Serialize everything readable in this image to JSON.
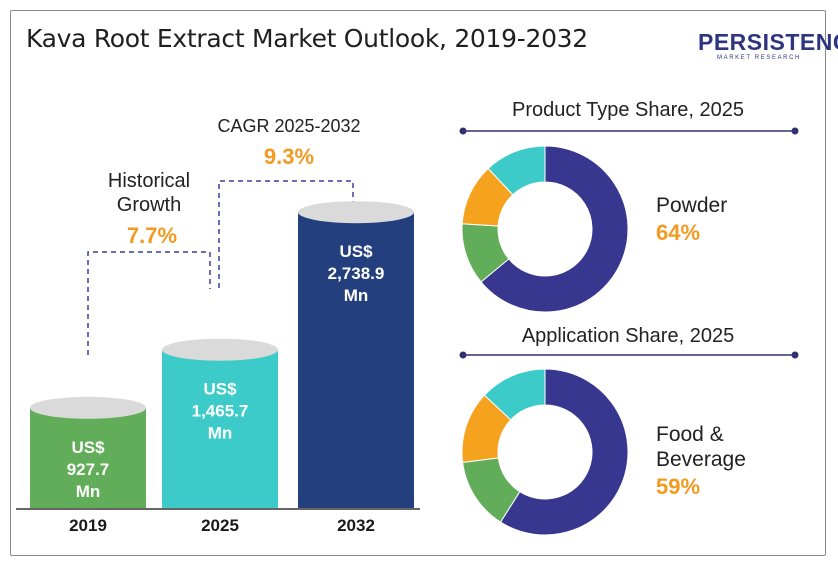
{
  "title": "Kava Root Extract Market Outlook, 2019-2032",
  "logo": {
    "main": "PERSISTENCE",
    "sub": "MARKET RESEARCH"
  },
  "colors": {
    "green": "#61ad59",
    "teal": "#3ccbc9",
    "navy": "#243f7d",
    "donut_navy": "#37378f",
    "orange": "#f5a21f",
    "accent_text": "#f39a21",
    "dashed": "#3a3f9a"
  },
  "cagr": {
    "label": "CAGR 2025-2032",
    "value": "9.3%"
  },
  "historical": {
    "line1": "Historical",
    "line2": "Growth",
    "value": "7.7%"
  },
  "chart_data": [
    {
      "type": "bar",
      "title": "",
      "categories": [
        "2019",
        "2025",
        "2032"
      ],
      "values": [
        927.7,
        1465.7,
        2738.9
      ],
      "bar_labels": [
        [
          "US$",
          "927.7",
          "Mn"
        ],
        [
          "US$",
          "1,465.7",
          "Mn"
        ],
        [
          "US$",
          "2,738.9",
          "Mn"
        ]
      ],
      "colors": [
        "#61ad59",
        "#3ccbc9",
        "#243f7d"
      ]
    },
    {
      "type": "pie",
      "title": "Product Type Share, 2025",
      "highlight_label": "Powder",
      "highlight_value": "64%",
      "slices": [
        {
          "value": 64,
          "color": "#37378f"
        },
        {
          "value": 12,
          "color": "#61ad59"
        },
        {
          "value": 12,
          "color": "#f5a21f"
        },
        {
          "value": 12,
          "color": "#3ccbc9"
        }
      ]
    },
    {
      "type": "pie",
      "title": "Application Share, 2025",
      "highlight_label_lines": [
        "Food &",
        "Beverage"
      ],
      "highlight_value": "59%",
      "slices": [
        {
          "value": 59,
          "color": "#37378f"
        },
        {
          "value": 14,
          "color": "#61ad59"
        },
        {
          "value": 14,
          "color": "#f5a21f"
        },
        {
          "value": 13,
          "color": "#3ccbc9"
        }
      ]
    }
  ]
}
